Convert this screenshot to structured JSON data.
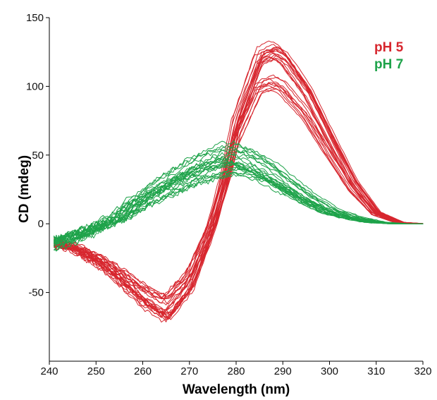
{
  "chart_data": {
    "type": "line",
    "title": "",
    "xlabel": "Wavelength (nm)",
    "ylabel": "CD (mdeg)",
    "xlim": [
      240,
      320
    ],
    "ylim": [
      -100,
      150
    ],
    "x_ticks": [
      "240",
      "250",
      "260",
      "270",
      "280",
      "290",
      "300",
      "310",
      "320"
    ],
    "y_ticks": [
      "-50",
      "0",
      "50",
      "100",
      "150"
    ],
    "grid": false,
    "legend_position": "top-right",
    "colors": {
      "pH 5": "#d7262e",
      "pH 7": "#1ea34a"
    },
    "x": [
      240,
      245,
      250,
      255,
      260,
      265,
      270,
      275,
      278,
      280,
      285,
      288,
      290,
      295,
      300,
      305,
      310,
      315,
      320
    ],
    "series": [
      {
        "name": "pH 5",
        "values": [
          -14,
          -18,
          -27,
          -40,
          -55,
          -66,
          -45,
          0,
          38,
          72,
          118,
          122,
          118,
          95,
          62,
          30,
          8,
          1,
          0
        ]
      },
      {
        "name": "pH 7",
        "values": [
          -15,
          -10,
          -3,
          5,
          18,
          28,
          37,
          44,
          47,
          47,
          40,
          34,
          29,
          18,
          9,
          4,
          1,
          0,
          0
        ]
      }
    ],
    "legend": [
      {
        "label": "pH 5",
        "color": "#d7262e"
      },
      {
        "label": "pH 7",
        "color": "#1ea34a"
      }
    ]
  }
}
